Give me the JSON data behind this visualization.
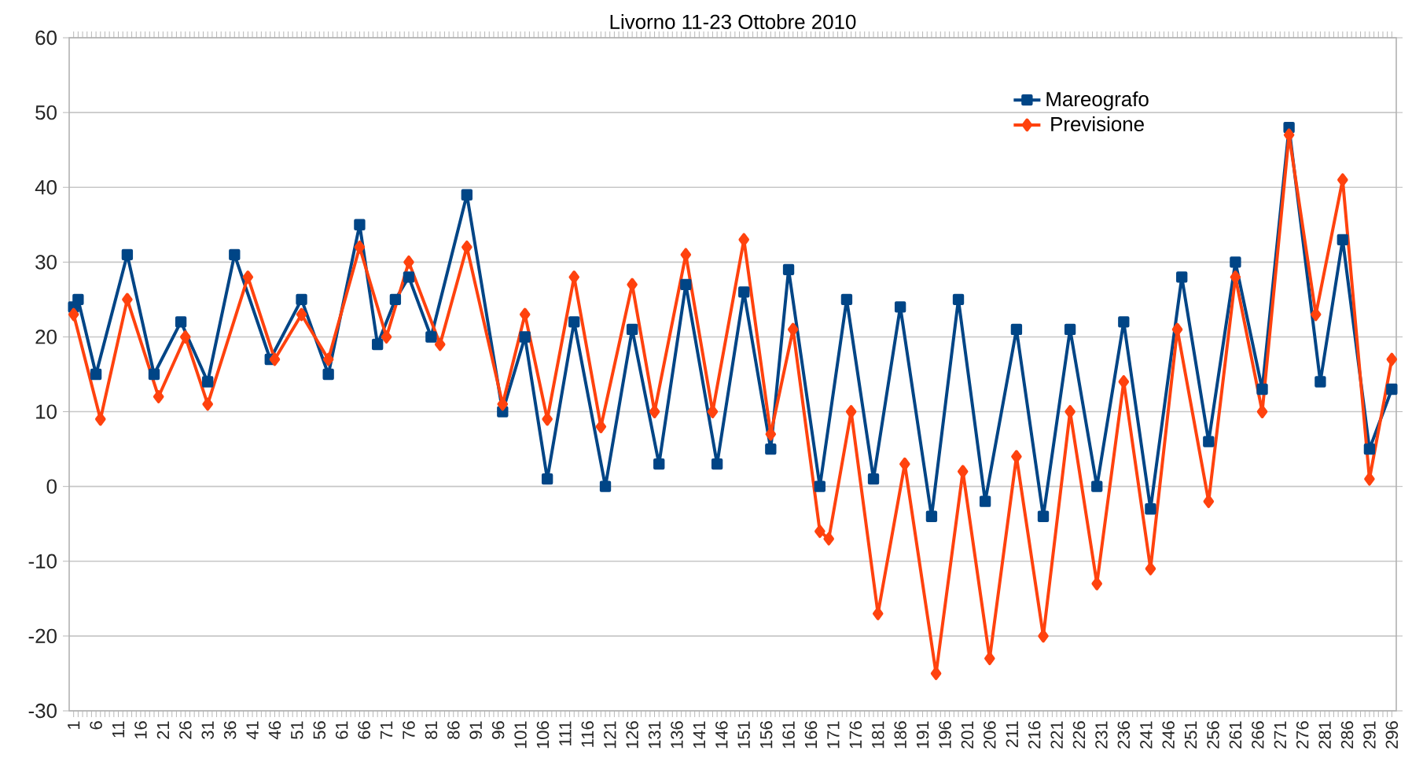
{
  "chart_data": {
    "type": "line",
    "title": "Livorno 11-23 Ottobre 2010",
    "xlim": [
      0,
      297
    ],
    "xticks": [
      1,
      6,
      11,
      16,
      21,
      26,
      31,
      36,
      41,
      46,
      51,
      56,
      61,
      66,
      71,
      76,
      81,
      86,
      91,
      96,
      101,
      106,
      111,
      116,
      121,
      126,
      131,
      136,
      141,
      146,
      151,
      156,
      161,
      166,
      171,
      176,
      181,
      186,
      191,
      196,
      201,
      206,
      211,
      216,
      221,
      226,
      231,
      236,
      241,
      246,
      251,
      256,
      261,
      266,
      271,
      276,
      281,
      286,
      291,
      296
    ],
    "ylim": [
      -30,
      60
    ],
    "yticks": [
      -30,
      -20,
      -10,
      0,
      10,
      20,
      30,
      40,
      50,
      60
    ],
    "grid": "y",
    "legend": "top right",
    "line_style": "solid",
    "series": [
      {
        "name": "Mareografo",
        "color": "#004586",
        "marker": "square",
        "x": [
          1,
          2,
          6,
          13,
          19,
          25,
          31,
          37,
          45,
          52,
          58,
          65,
          69,
          73,
          76,
          81,
          89,
          97,
          102,
          107,
          113,
          120,
          126,
          132,
          138,
          145,
          151,
          157,
          161,
          168,
          174,
          180,
          186,
          193,
          199,
          205,
          212,
          218,
          224,
          230,
          236,
          242,
          249,
          255,
          261,
          267,
          273,
          280,
          285,
          291,
          296
        ],
        "values": [
          24,
          25,
          15,
          31,
          15,
          22,
          14,
          31,
          17,
          25,
          15,
          35,
          19,
          25,
          28,
          20,
          39,
          10,
          20,
          1,
          22,
          0,
          21,
          3,
          27,
          3,
          26,
          5,
          29,
          0,
          25,
          1,
          24,
          -4,
          25,
          -2,
          21,
          -4,
          21,
          0,
          22,
          -3,
          28,
          6,
          30,
          13,
          48,
          14,
          33,
          5,
          13
        ]
      },
      {
        "name": "Previsione",
        "color": "#ff420e",
        "marker": "diamond",
        "x": [
          1,
          7,
          13,
          20,
          26,
          31,
          40,
          46,
          52,
          58,
          65,
          71,
          76,
          83,
          89,
          97,
          102,
          107,
          113,
          119,
          126,
          131,
          138,
          144,
          151,
          157,
          162,
          168,
          170,
          175,
          181,
          187,
          194,
          200,
          206,
          212,
          218,
          224,
          230,
          236,
          242,
          248,
          255,
          261,
          267,
          273,
          279,
          285,
          291,
          296
        ],
        "values": [
          23,
          9,
          25,
          12,
          20,
          11,
          28,
          17,
          23,
          17,
          32,
          20,
          30,
          19,
          32,
          11,
          23,
          9,
          28,
          8,
          27,
          10,
          31,
          10,
          33,
          7,
          21,
          -6,
          -7,
          10,
          -17,
          3,
          -25,
          2,
          -23,
          4,
          -20,
          10,
          -13,
          14,
          -11,
          21,
          -2,
          28,
          10,
          47,
          23,
          41,
          1,
          17
        ]
      }
    ]
  }
}
